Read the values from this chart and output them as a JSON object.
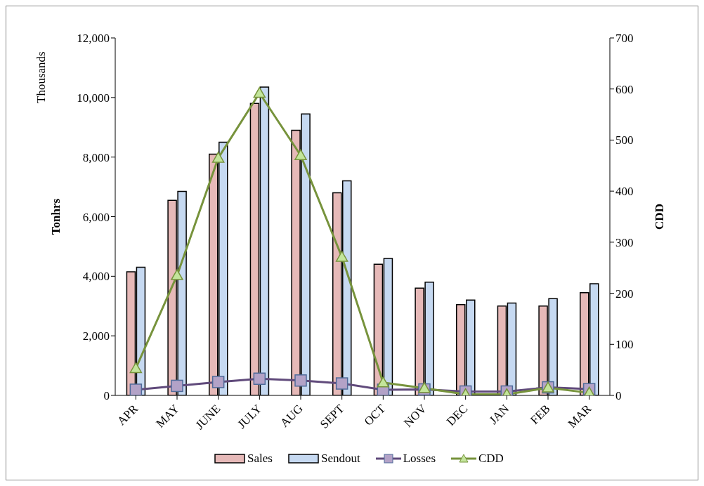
{
  "chart_data": {
    "type": "bar",
    "categories": [
      "APR",
      "MAY",
      "JUNE",
      "JULY",
      "AUG",
      "SEPT",
      "OCT",
      "NOV",
      "DEC",
      "JAN",
      "FEB",
      "MAR"
    ],
    "ylabel": "Tonhrs",
    "y2label": "CDD",
    "annotations": [
      "Thousands"
    ],
    "ylim": [
      0,
      12000
    ],
    "yticks": [
      {
        "value": 0,
        "label": "0"
      },
      {
        "value": 2000,
        "label": "2,000"
      },
      {
        "value": 4000,
        "label": "4,000"
      },
      {
        "value": 6000,
        "label": "6,000"
      },
      {
        "value": 8000,
        "label": "8,000"
      },
      {
        "value": 10000,
        "label": "10,000"
      },
      {
        "value": 12000,
        "label": "12,000"
      }
    ],
    "y2lim": [
      0,
      700
    ],
    "y2ticks": [
      0,
      100,
      200,
      300,
      400,
      500,
      600,
      700
    ],
    "legend": "bottom",
    "series": [
      {
        "name": "Sales",
        "color": "#e6b9b8",
        "values": [
          4150,
          6550,
          8100,
          9800,
          8900,
          6800,
          4400,
          3600,
          3050,
          3000,
          3000,
          3450
        ]
      },
      {
        "name": "Sendout",
        "color": "#c6d9f1",
        "values": [
          4300,
          6850,
          8500,
          10350,
          9450,
          7200,
          4600,
          3800,
          3200,
          3100,
          3250,
          3750
        ]
      },
      {
        "name": "Losses",
        "type": "line",
        "color": "#604a7b",
        "marker": "square",
        "values": [
          190,
          320,
          450,
          560,
          500,
          400,
          190,
          200,
          130,
          130,
          270,
          210
        ]
      },
      {
        "name": "CDD",
        "type": "line",
        "axis": "y2",
        "color": "#77933c",
        "marker": "triangle",
        "values": [
          53,
          235,
          465,
          592,
          470,
          271,
          25,
          14,
          2,
          2,
          15,
          5
        ]
      }
    ]
  }
}
